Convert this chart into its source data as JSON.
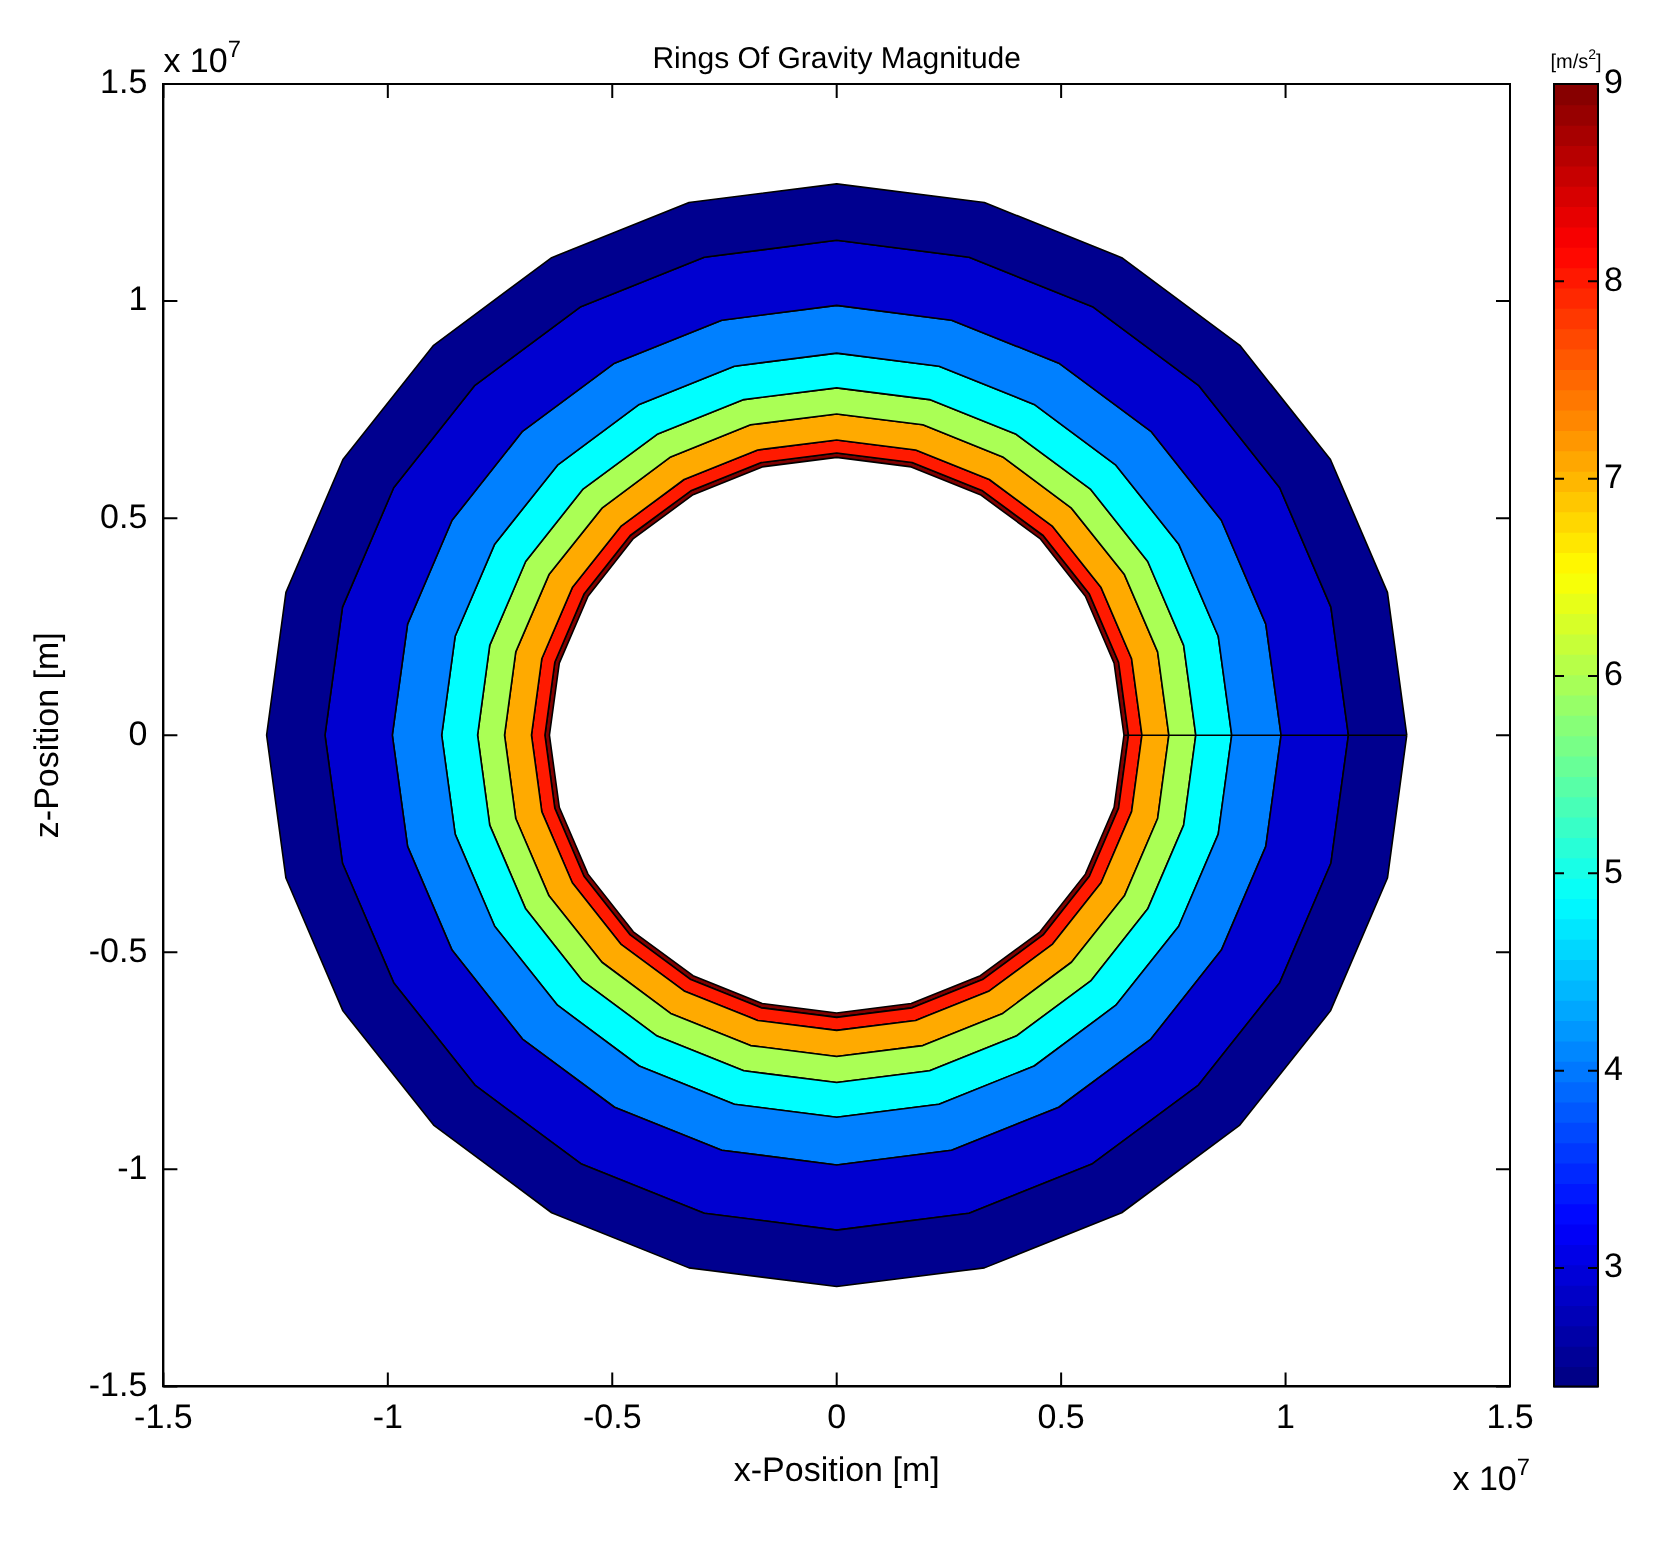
{
  "chart_data": {
    "type": "area",
    "title": "Rings Of Gravity Magnitude",
    "xlabel": "x-Position [m]",
    "ylabel": "z-Position [m]",
    "clabel": "[m/s$^{2}$]",
    "annotations": [
      "x 10$^{7}$",
      "x 10$^{7}$"
    ],
    "xlim": [
      -1.5,
      1.5
    ],
    "ylim": [
      -1.5,
      1.5
    ],
    "xticks": [
      -1.5,
      -1,
      -0.5,
      0,
      0.5,
      1,
      1.5
    ],
    "yticks": [
      -1.5,
      -1,
      -0.5,
      0,
      0.5,
      1,
      1.5
    ],
    "clim": [
      2.4,
      9
    ],
    "cticks": [
      3,
      4,
      5,
      6,
      7,
      8,
      9
    ],
    "grid": false,
    "legend": false,
    "series": [
      {
        "color": "#00008f",
        "x": [
          1.27,
          1.227,
          1.1,
          0.898,
          0.635,
          0.329,
          0,
          -0.329,
          -0.635,
          -0.898,
          -1.1,
          -1.227,
          -1.27,
          -1.227,
          -1.1,
          -0.898,
          -0.635,
          -0.329,
          0,
          0.329,
          0.635,
          0.898,
          1.1,
          1.227,
          1.27,
          1.14,
          1.101,
          0.987,
          0.806,
          0.57,
          0.295,
          0,
          -0.295,
          -0.57,
          -0.806,
          -0.987,
          -1.101,
          -1.14,
          -1.101,
          -0.987,
          -0.806,
          -0.57,
          -0.295,
          0,
          0.295,
          0.57,
          0.806,
          0.987,
          1.101,
          1.14
        ],
        "values": [
          0,
          0.329,
          0.635,
          0.898,
          1.1,
          1.227,
          1.27,
          1.227,
          1.1,
          0.898,
          0.635,
          0.329,
          0,
          -0.329,
          -0.635,
          -0.898,
          -1.1,
          -1.227,
          -1.27,
          -1.227,
          -1.1,
          -0.898,
          -0.635,
          -0.329,
          0,
          0,
          -0.295,
          -0.57,
          -0.806,
          -0.987,
          -1.101,
          -1.14,
          -1.101,
          -0.987,
          -0.806,
          -0.57,
          -0.295,
          0,
          0.295,
          0.57,
          0.806,
          0.987,
          1.101,
          1.14,
          1.101,
          0.987,
          0.806,
          0.57,
          0.295,
          0
        ]
      },
      {
        "color": "#0000d0",
        "x": [
          1.14,
          1.101,
          0.987,
          0.806,
          0.57,
          0.295,
          0,
          -0.295,
          -0.57,
          -0.806,
          -0.987,
          -1.101,
          -1.14,
          -1.101,
          -0.987,
          -0.806,
          -0.57,
          -0.295,
          0,
          0.295,
          0.57,
          0.806,
          0.987,
          1.101,
          1.14,
          0.99,
          0.956,
          0.857,
          0.7,
          0.495,
          0.256,
          0,
          -0.256,
          -0.495,
          -0.7,
          -0.857,
          -0.956,
          -0.99,
          -0.956,
          -0.857,
          -0.7,
          -0.495,
          -0.256,
          0,
          0.256,
          0.495,
          0.7,
          0.857,
          0.956,
          0.99
        ],
        "values": [
          0,
          0.295,
          0.57,
          0.806,
          0.987,
          1.101,
          1.14,
          1.101,
          0.987,
          0.806,
          0.57,
          0.295,
          0,
          -0.295,
          -0.57,
          -0.806,
          -0.987,
          -1.101,
          -1.14,
          -1.101,
          -0.987,
          -0.806,
          -0.57,
          -0.295,
          0,
          0,
          -0.256,
          -0.495,
          -0.7,
          -0.857,
          -0.956,
          -0.99,
          -0.956,
          -0.857,
          -0.7,
          -0.495,
          -0.256,
          0,
          0.256,
          0.495,
          0.7,
          0.857,
          0.956,
          0.99,
          0.956,
          0.857,
          0.7,
          0.495,
          0.256,
          0
        ]
      },
      {
        "color": "#0080ff",
        "x": [
          0.99,
          0.956,
          0.857,
          0.7,
          0.495,
          0.256,
          0,
          -0.256,
          -0.495,
          -0.7,
          -0.857,
          -0.956,
          -0.99,
          -0.956,
          -0.857,
          -0.7,
          -0.495,
          -0.256,
          0,
          0.256,
          0.495,
          0.7,
          0.857,
          0.956,
          0.99,
          0.88,
          0.85,
          0.762,
          0.622,
          0.44,
          0.228,
          0,
          -0.228,
          -0.44,
          -0.622,
          -0.762,
          -0.85,
          -0.88,
          -0.85,
          -0.762,
          -0.622,
          -0.44,
          -0.228,
          0,
          0.228,
          0.44,
          0.622,
          0.762,
          0.85,
          0.88
        ],
        "values": [
          0,
          0.256,
          0.495,
          0.7,
          0.857,
          0.956,
          0.99,
          0.956,
          0.857,
          0.7,
          0.495,
          0.256,
          0,
          -0.256,
          -0.495,
          -0.7,
          -0.857,
          -0.956,
          -0.99,
          -0.956,
          -0.857,
          -0.7,
          -0.495,
          -0.256,
          0,
          0,
          -0.228,
          -0.44,
          -0.622,
          -0.762,
          -0.85,
          -0.88,
          -0.85,
          -0.762,
          -0.622,
          -0.44,
          -0.228,
          0,
          0.228,
          0.44,
          0.622,
          0.762,
          0.85,
          0.88,
          0.85,
          0.762,
          0.622,
          0.44,
          0.228,
          0
        ]
      },
      {
        "color": "#00ffff",
        "x": [
          0.88,
          0.85,
          0.762,
          0.622,
          0.44,
          0.228,
          0,
          -0.228,
          -0.44,
          -0.622,
          -0.762,
          -0.85,
          -0.88,
          -0.85,
          -0.762,
          -0.622,
          -0.44,
          -0.228,
          0,
          0.228,
          0.44,
          0.622,
          0.762,
          0.85,
          0.88,
          0.8,
          0.773,
          0.693,
          0.566,
          0.4,
          0.207,
          0,
          -0.207,
          -0.4,
          -0.566,
          -0.693,
          -0.773,
          -0.8,
          -0.773,
          -0.693,
          -0.566,
          -0.4,
          -0.207,
          0,
          0.207,
          0.4,
          0.566,
          0.693,
          0.773,
          0.8
        ],
        "values": [
          0,
          0.228,
          0.44,
          0.622,
          0.762,
          0.85,
          0.88,
          0.85,
          0.762,
          0.622,
          0.44,
          0.228,
          0,
          -0.228,
          -0.44,
          -0.622,
          -0.762,
          -0.85,
          -0.88,
          -0.85,
          -0.762,
          -0.622,
          -0.44,
          -0.228,
          0,
          0,
          -0.207,
          -0.4,
          -0.566,
          -0.693,
          -0.773,
          -0.8,
          -0.773,
          -0.693,
          -0.566,
          -0.4,
          -0.207,
          0,
          0.207,
          0.4,
          0.566,
          0.693,
          0.773,
          0.8,
          0.773,
          0.693,
          0.566,
          0.4,
          0.207,
          0
        ]
      },
      {
        "color": "#aaff55",
        "x": [
          0.8,
          0.773,
          0.693,
          0.566,
          0.4,
          0.207,
          0,
          -0.207,
          -0.4,
          -0.566,
          -0.693,
          -0.773,
          -0.8,
          -0.773,
          -0.693,
          -0.566,
          -0.4,
          -0.207,
          0,
          0.207,
          0.4,
          0.566,
          0.693,
          0.773,
          0.8,
          0.74,
          0.715,
          0.641,
          0.523,
          0.37,
          0.192,
          0,
          -0.192,
          -0.37,
          -0.523,
          -0.641,
          -0.715,
          -0.74,
          -0.715,
          -0.641,
          -0.523,
          -0.37,
          -0.192,
          0,
          0.192,
          0.37,
          0.523,
          0.641,
          0.715,
          0.74
        ],
        "values": [
          0,
          0.207,
          0.4,
          0.566,
          0.693,
          0.773,
          0.8,
          0.773,
          0.693,
          0.566,
          0.4,
          0.207,
          0,
          -0.207,
          -0.4,
          -0.566,
          -0.693,
          -0.773,
          -0.8,
          -0.773,
          -0.693,
          -0.566,
          -0.4,
          -0.207,
          0,
          0,
          -0.192,
          -0.37,
          -0.523,
          -0.641,
          -0.715,
          -0.74,
          -0.715,
          -0.641,
          -0.523,
          -0.37,
          -0.192,
          0,
          0.192,
          0.37,
          0.523,
          0.641,
          0.715,
          0.74,
          0.715,
          0.641,
          0.523,
          0.37,
          0.192,
          0
        ]
      },
      {
        "color": "#ffaa00",
        "x": [
          0.74,
          0.715,
          0.641,
          0.523,
          0.37,
          0.192,
          0,
          -0.192,
          -0.37,
          -0.523,
          -0.641,
          -0.715,
          -0.74,
          -0.715,
          -0.641,
          -0.523,
          -0.37,
          -0.192,
          0,
          0.192,
          0.37,
          0.523,
          0.641,
          0.715,
          0.74,
          0.68,
          0.657,
          0.589,
          0.481,
          0.34,
          0.176,
          0,
          -0.176,
          -0.34,
          -0.481,
          -0.589,
          -0.657,
          -0.68,
          -0.657,
          -0.589,
          -0.481,
          -0.34,
          -0.176,
          0,
          0.176,
          0.34,
          0.481,
          0.589,
          0.657,
          0.68
        ],
        "values": [
          0,
          0.192,
          0.37,
          0.523,
          0.641,
          0.715,
          0.74,
          0.715,
          0.641,
          0.523,
          0.37,
          0.192,
          0,
          -0.192,
          -0.37,
          -0.523,
          -0.641,
          -0.715,
          -0.74,
          -0.715,
          -0.641,
          -0.523,
          -0.37,
          -0.192,
          0,
          0,
          -0.176,
          -0.34,
          -0.481,
          -0.589,
          -0.657,
          -0.68,
          -0.657,
          -0.589,
          -0.481,
          -0.34,
          -0.176,
          0,
          0.176,
          0.34,
          0.481,
          0.589,
          0.657,
          0.68,
          0.657,
          0.589,
          0.481,
          0.34,
          0.176,
          0
        ]
      },
      {
        "color": "#ff1a00",
        "x": [
          0.68,
          0.657,
          0.589,
          0.481,
          0.34,
          0.176,
          0,
          -0.176,
          -0.34,
          -0.481,
          -0.589,
          -0.657,
          -0.68,
          -0.657,
          -0.589,
          -0.481,
          -0.34,
          -0.176,
          0,
          0.176,
          0.34,
          0.481,
          0.589,
          0.657,
          0.68,
          0.65,
          0.628,
          0.563,
          0.46,
          0.325,
          0.168,
          0,
          -0.168,
          -0.325,
          -0.46,
          -0.563,
          -0.628,
          -0.65,
          -0.628,
          -0.563,
          -0.46,
          -0.325,
          -0.168,
          0,
          0.168,
          0.325,
          0.46,
          0.563,
          0.628,
          0.65
        ],
        "values": [
          0,
          0.176,
          0.34,
          0.481,
          0.589,
          0.657,
          0.68,
          0.657,
          0.589,
          0.481,
          0.34,
          0.176,
          0,
          -0.176,
          -0.34,
          -0.481,
          -0.589,
          -0.657,
          -0.68,
          -0.657,
          -0.589,
          -0.481,
          -0.34,
          -0.176,
          0,
          0,
          -0.168,
          -0.325,
          -0.46,
          -0.563,
          -0.628,
          -0.65,
          -0.628,
          -0.563,
          -0.46,
          -0.325,
          -0.168,
          0,
          0.168,
          0.325,
          0.46,
          0.563,
          0.628,
          0.65,
          0.628,
          0.563,
          0.46,
          0.325,
          0.168,
          0
        ]
      },
      {
        "color": "#800000",
        "x": [
          0.65,
          0.628,
          0.563,
          0.46,
          0.325,
          0.168,
          0,
          -0.168,
          -0.325,
          -0.46,
          -0.563,
          -0.628,
          -0.65,
          -0.628,
          -0.563,
          -0.46,
          -0.325,
          -0.168,
          0,
          0.168,
          0.325,
          0.46,
          0.563,
          0.628,
          0.65,
          0.64,
          0.618,
          0.554,
          0.453,
          0.32,
          0.166,
          0,
          -0.166,
          -0.32,
          -0.453,
          -0.554,
          -0.618,
          -0.64,
          -0.618,
          -0.554,
          -0.453,
          -0.32,
          -0.166,
          0,
          0.166,
          0.32,
          0.453,
          0.554,
          0.618,
          0.64
        ],
        "values": [
          0,
          0.168,
          0.325,
          0.46,
          0.563,
          0.628,
          0.65,
          0.628,
          0.563,
          0.46,
          0.325,
          0.168,
          0,
          -0.168,
          -0.325,
          -0.46,
          -0.563,
          -0.628,
          -0.65,
          -0.628,
          -0.563,
          -0.46,
          -0.325,
          -0.168,
          0,
          0,
          -0.166,
          -0.32,
          -0.453,
          -0.554,
          -0.618,
          -0.64,
          -0.618,
          -0.554,
          -0.453,
          -0.32,
          -0.166,
          0,
          0.166,
          0.32,
          0.453,
          0.554,
          0.618,
          0.64,
          0.618,
          0.554,
          0.453,
          0.32,
          0.166,
          0
        ]
      }
    ]
  }
}
